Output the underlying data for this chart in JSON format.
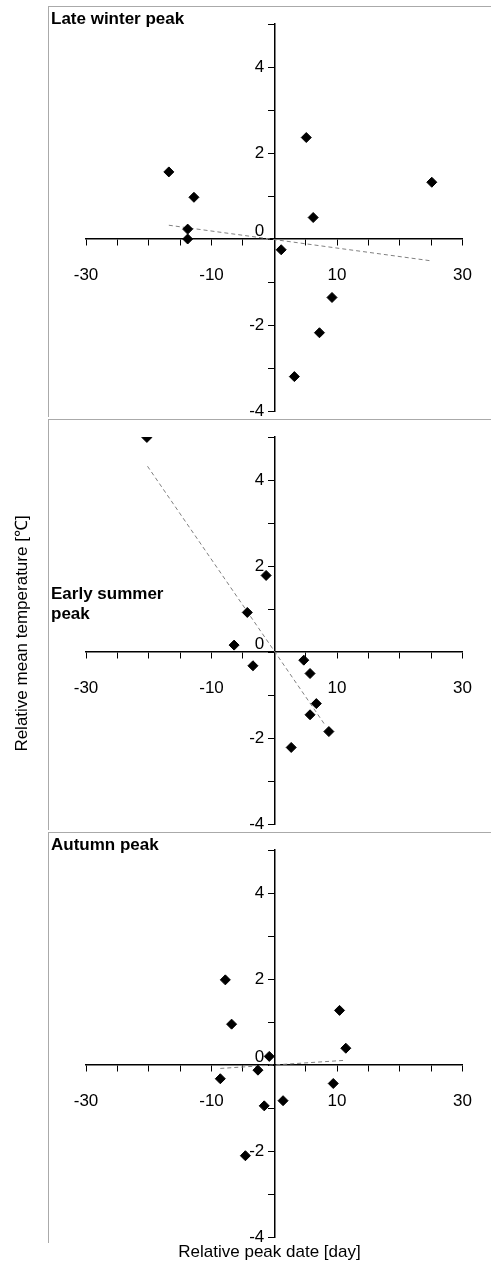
{
  "chart_data": [
    {
      "type": "scatter",
      "title": "Late winter peak",
      "marker": "diamond",
      "grid": false,
      "legend": false,
      "xlim": [
        -30,
        30
      ],
      "xticks": [
        {
          "value": -30,
          "label": "-30"
        },
        {
          "value": -25,
          "label": null
        },
        {
          "value": -20,
          "label": null
        },
        {
          "value": -15,
          "label": null
        },
        {
          "value": -10,
          "label": "-10"
        },
        {
          "value": -5,
          "label": null
        },
        {
          "value": 0,
          "label": null
        },
        {
          "value": 5,
          "label": null
        },
        {
          "value": 10,
          "label": "10"
        },
        {
          "value": 15,
          "label": null
        },
        {
          "value": 20,
          "label": null
        },
        {
          "value": 25,
          "label": null
        },
        {
          "value": 30,
          "label": "30"
        }
      ],
      "ylim": [
        -4,
        5
      ],
      "yticks": [
        -4,
        {
          "value": -3,
          "label": null
        },
        -2,
        {
          "value": -1,
          "label": null
        },
        0,
        {
          "value": 1,
          "label": null
        },
        2,
        {
          "value": 3,
          "label": null
        },
        4,
        {
          "value": 5,
          "label": null
        }
      ],
      "series": [
        {
          "color": "#000000",
          "x": [
            -16.8,
            -12.8,
            -13.8,
            -13.8,
            5.1,
            25.1,
            6.2,
            1.1,
            9.2,
            7.2,
            3.2
          ],
          "values": [
            1.56,
            0.97,
            0.23,
            0.0,
            2.36,
            1.32,
            0.5,
            -0.25,
            -1.36,
            -2.18,
            -3.2
          ]
        },
        {
          "type": "line",
          "line_style": "dashed",
          "marker": "none",
          "color": "#808080",
          "x": [
            -16.8,
            25.1
          ],
          "values": [
            0.32,
            -0.51
          ]
        }
      ]
    },
    {
      "type": "scatter",
      "title": "Early summer peak",
      "ylabel": "Relative mean temperature [℃]",
      "marker": "diamond",
      "grid": false,
      "legend": false,
      "xlim": [
        -30,
        30
      ],
      "xticks": [
        {
          "value": -30,
          "label": "-30"
        },
        {
          "value": -25,
          "label": null
        },
        {
          "value": -20,
          "label": null
        },
        {
          "value": -15,
          "label": null
        },
        {
          "value": -10,
          "label": "-10"
        },
        {
          "value": -5,
          "label": null
        },
        {
          "value": 0,
          "label": null
        },
        {
          "value": 5,
          "label": null
        },
        {
          "value": 10,
          "label": "10"
        },
        {
          "value": 15,
          "label": null
        },
        {
          "value": 20,
          "label": null
        },
        {
          "value": 25,
          "label": null
        },
        {
          "value": 30,
          "label": "30"
        }
      ],
      "ylim": [
        -4,
        5
      ],
      "yticks": [
        -4,
        {
          "value": -3,
          "label": null
        },
        -2,
        {
          "value": -1,
          "label": null
        },
        0,
        {
          "value": 1,
          "label": null
        },
        2,
        {
          "value": 3,
          "label": null
        },
        4,
        {
          "value": 5,
          "label": null
        }
      ],
      "series": [
        {
          "color": "#000000",
          "x": [
            -20.3,
            -1.3,
            -4.3,
            -6.4,
            -3.4,
            4.7,
            5.7,
            6.7,
            5.7,
            8.7,
            2.7
          ],
          "values": [
            4.99,
            1.78,
            0.92,
            0.16,
            -0.32,
            -0.19,
            -0.5,
            -1.2,
            -1.46,
            -1.85,
            -2.22
          ]
        },
        {
          "type": "line",
          "line_style": "dashed",
          "marker": "none",
          "color": "#808080",
          "x": [
            -20.2,
            8.1
          ],
          "values": [
            4.32,
            -1.7
          ]
        }
      ]
    },
    {
      "type": "scatter",
      "title": "Autumn peak",
      "xlabel": "Relative peak date [day]",
      "marker": "diamond",
      "grid": false,
      "legend": false,
      "xlim": [
        -30,
        30
      ],
      "xticks": [
        {
          "value": -30,
          "label": "-30"
        },
        {
          "value": -25,
          "label": null
        },
        {
          "value": -20,
          "label": null
        },
        {
          "value": -15,
          "label": null
        },
        {
          "value": -10,
          "label": "-10"
        },
        {
          "value": -5,
          "label": null
        },
        {
          "value": 0,
          "label": null
        },
        {
          "value": 5,
          "label": null
        },
        {
          "value": 10,
          "label": "10"
        },
        {
          "value": 15,
          "label": null
        },
        {
          "value": 20,
          "label": null
        },
        {
          "value": 25,
          "label": null
        },
        {
          "value": 30,
          "label": "30"
        }
      ],
      "ylim": [
        -4,
        5
      ],
      "yticks": [
        -4,
        {
          "value": -3,
          "label": null
        },
        -2,
        {
          "value": -1,
          "label": null
        },
        0,
        {
          "value": 1,
          "label": null
        },
        2,
        {
          "value": 3,
          "label": null
        },
        4,
        {
          "value": 5,
          "label": null
        }
      ],
      "series": [
        {
          "color": "#000000",
          "x": [
            -7.8,
            -6.8,
            -0.8,
            -2.6,
            -8.6,
            -1.6,
            1.4,
            -4.6,
            10.4,
            11.4,
            9.4
          ],
          "values": [
            1.98,
            0.95,
            0.2,
            -0.12,
            -0.32,
            -0.95,
            -0.83,
            -2.11,
            1.27,
            0.39,
            -0.43
          ]
        },
        {
          "type": "line",
          "line_style": "dashed",
          "marker": "none",
          "color": "#808080",
          "x": [
            -8.6,
            11.4
          ],
          "values": [
            -0.08,
            0.11
          ]
        }
      ]
    }
  ]
}
